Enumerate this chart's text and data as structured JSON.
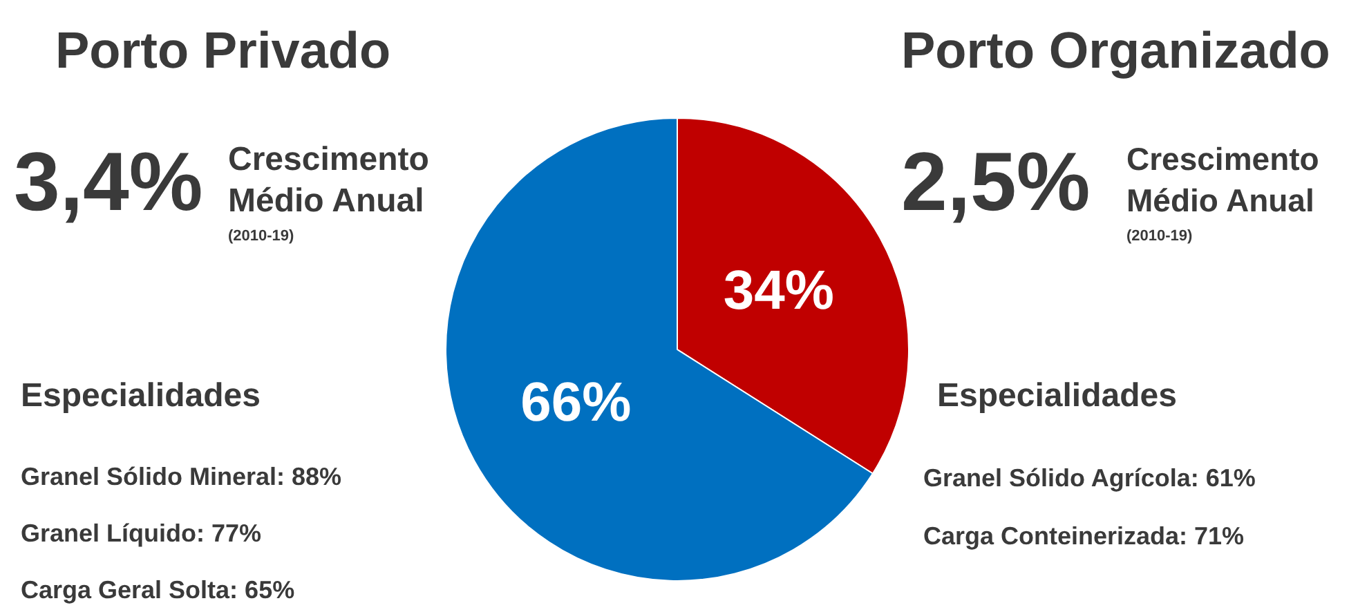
{
  "chart_data": {
    "type": "pie",
    "categories": [
      "Porto Organizado",
      "Porto Privado"
    ],
    "values": [
      34,
      66
    ],
    "colors": [
      "#c00000",
      "#0070c0"
    ],
    "value_labels": [
      "34%",
      "66%"
    ],
    "legend": false,
    "annotations": [
      "3,4%",
      "Crescimento",
      "Médio Anual",
      "(2010-19)",
      "Especialidades",
      "Granel Sólido Mineral: 88%",
      "Granel Líquido: 77%",
      "Carga Geral Solta: 65%",
      "2,5%",
      "Crescimento",
      "Médio Anual",
      "(2010-19)",
      "Especialidades",
      "Granel Sólido Agrícola: 61%",
      "Carga Conteinerizada: 71%"
    ]
  }
}
